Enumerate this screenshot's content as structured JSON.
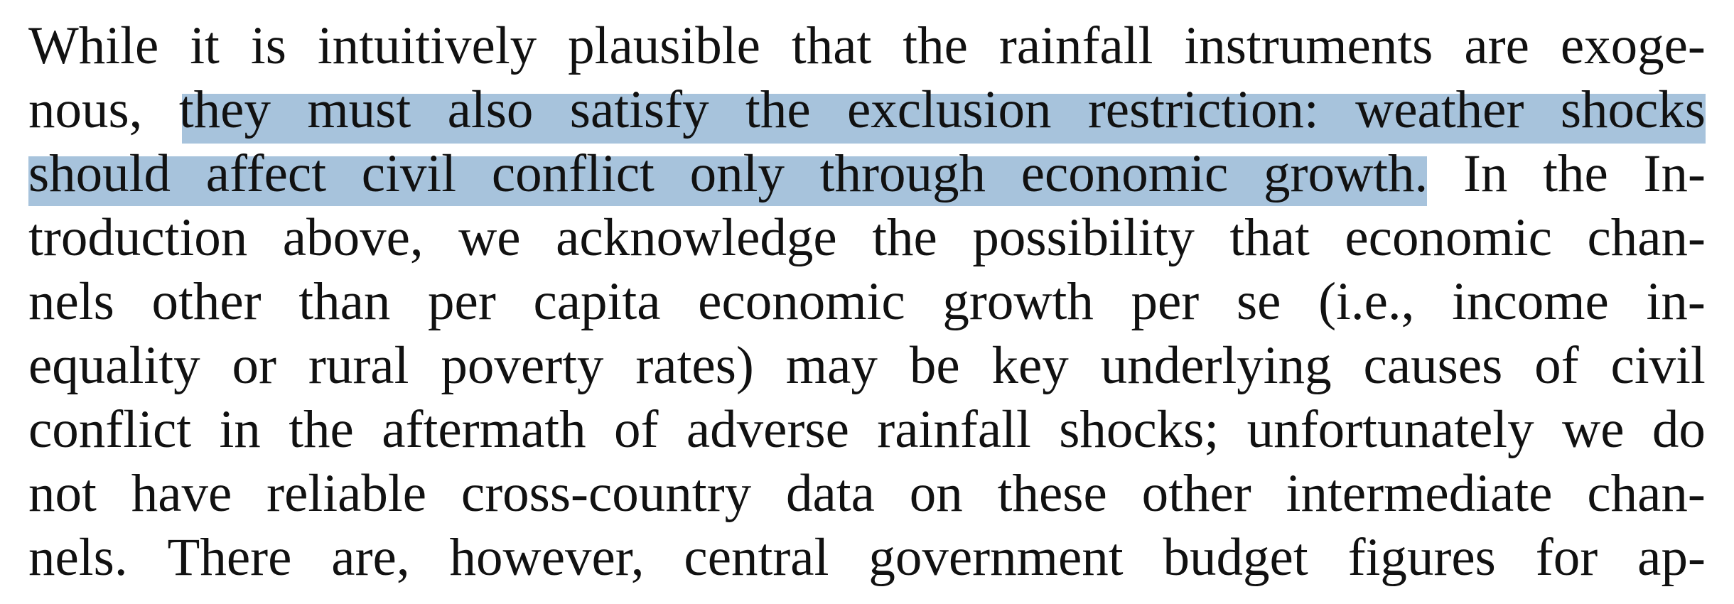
{
  "highlight_color": "#a7c3dc",
  "lines": [
    "While it is intuitively plausible that the rainfall instruments are exoge-",
    "nous, they must also satisfy the exclusion restriction: weather shocks",
    "should affect civil conflict only through economic growth. In the In-",
    "troduction above, we acknowledge the possibility that economic chan-",
    "nels other than per capita economic growth per se (i.e., income in-",
    "equality or rural poverty rates) may be key underlying causes of civil",
    "conflict in the aftermath of adverse rainfall shocks; unfortunately we do",
    "not have reliable cross-country data on these other intermediate chan-",
    "nels. There are, however, central government budget figures for ap-"
  ]
}
